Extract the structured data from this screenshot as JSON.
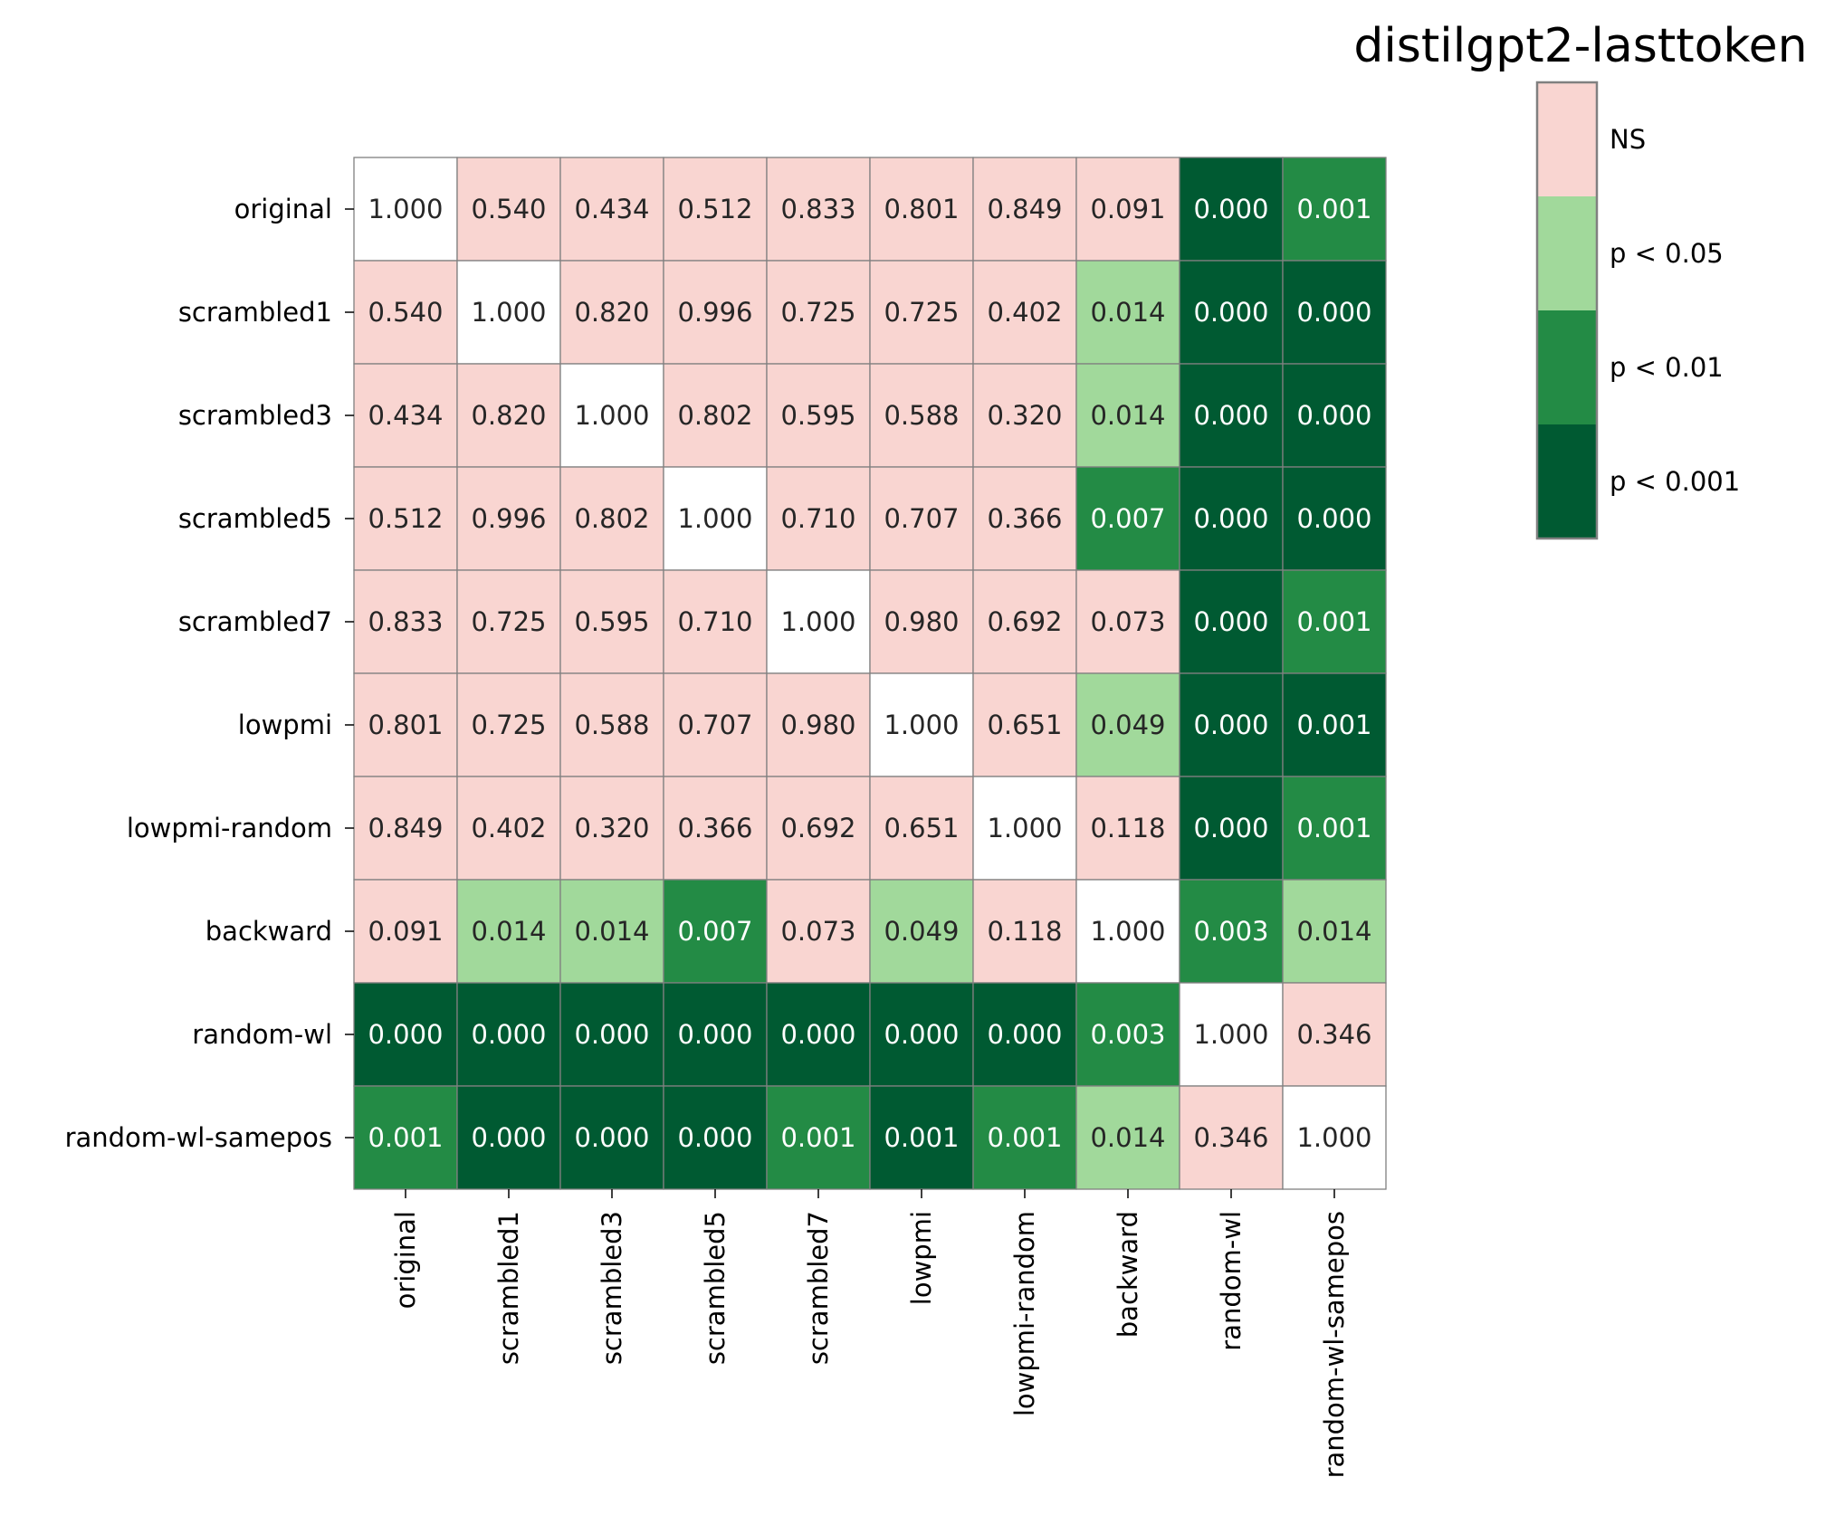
{
  "chart_data": {
    "type": "heatmap",
    "title": "distilgpt2-lasttoken",
    "rows": [
      "original",
      "scrambled1",
      "scrambled3",
      "scrambled5",
      "scrambled7",
      "lowpmi",
      "lowpmi-random",
      "backward",
      "random-wl",
      "random-wl-samepos"
    ],
    "columns": [
      "original",
      "scrambled1",
      "scrambled3",
      "scrambled5",
      "scrambled7",
      "lowpmi",
      "lowpmi-random",
      "backward",
      "random-wl",
      "random-wl-samepos"
    ],
    "values": [
      [
        1.0,
        0.54,
        0.434,
        0.512,
        0.833,
        0.801,
        0.849,
        0.091,
        0.0,
        0.001
      ],
      [
        0.54,
        1.0,
        0.82,
        0.996,
        0.725,
        0.725,
        0.402,
        0.014,
        0.0,
        0.0
      ],
      [
        0.434,
        0.82,
        1.0,
        0.802,
        0.595,
        0.588,
        0.32,
        0.014,
        0.0,
        0.0
      ],
      [
        0.512,
        0.996,
        0.802,
        1.0,
        0.71,
        0.707,
        0.366,
        0.007,
        0.0,
        0.0
      ],
      [
        0.833,
        0.725,
        0.595,
        0.71,
        1.0,
        0.98,
        0.692,
        0.073,
        0.0,
        0.001
      ],
      [
        0.801,
        0.725,
        0.588,
        0.707,
        0.98,
        1.0,
        0.651,
        0.049,
        0.0,
        0.001
      ],
      [
        0.849,
        0.402,
        0.32,
        0.366,
        0.692,
        0.651,
        1.0,
        0.118,
        0.0,
        0.001
      ],
      [
        0.091,
        0.014,
        0.014,
        0.007,
        0.073,
        0.049,
        0.118,
        1.0,
        0.003,
        0.014
      ],
      [
        0.0,
        0.0,
        0.0,
        0.0,
        0.0,
        0.0,
        0.0,
        0.003,
        1.0,
        0.346
      ],
      [
        0.001,
        0.0,
        0.0,
        0.0,
        0.001,
        0.001,
        0.001,
        0.014,
        0.346,
        1.0
      ]
    ],
    "levels": [
      [
        0,
        1,
        1,
        1,
        1,
        1,
        1,
        1,
        4,
        3
      ],
      [
        1,
        0,
        1,
        1,
        1,
        1,
        1,
        2,
        4,
        4
      ],
      [
        1,
        1,
        0,
        1,
        1,
        1,
        1,
        2,
        4,
        4
      ],
      [
        1,
        1,
        1,
        0,
        1,
        1,
        1,
        3,
        4,
        4
      ],
      [
        1,
        1,
        1,
        1,
        0,
        1,
        1,
        1,
        4,
        3
      ],
      [
        1,
        1,
        1,
        1,
        1,
        0,
        1,
        2,
        4,
        4
      ],
      [
        1,
        1,
        1,
        1,
        1,
        1,
        0,
        1,
        4,
        3
      ],
      [
        1,
        2,
        2,
        3,
        1,
        2,
        1,
        0,
        3,
        2
      ],
      [
        4,
        4,
        4,
        4,
        4,
        4,
        4,
        3,
        0,
        1
      ],
      [
        3,
        4,
        4,
        4,
        3,
        4,
        3,
        2,
        1,
        0
      ]
    ],
    "colors": [
      "#ffffff",
      "#f9d5d1",
      "#a1d99b",
      "#238b45",
      "#005a32"
    ],
    "text_colors": [
      "#262626",
      "#262626",
      "#262626",
      "#ffffff",
      "#ffffff"
    ],
    "legend": {
      "placement": "right",
      "entries": [
        {
          "label": "NS",
          "color": "#f9d5d1"
        },
        {
          "label": "p < 0.05",
          "color": "#a1d99b"
        },
        {
          "label": "p < 0.01",
          "color": "#238b45"
        },
        {
          "label": "p < 0.001",
          "color": "#005a32"
        }
      ]
    },
    "grid": true,
    "value_format": "3 decimals"
  }
}
